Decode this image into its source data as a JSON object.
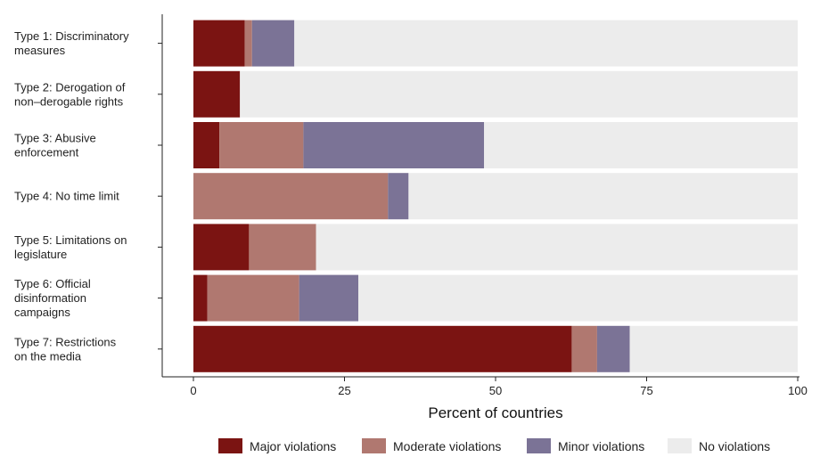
{
  "chart_data": {
    "type": "bar",
    "orientation": "horizontal",
    "stacked": true,
    "xlabel": "Percent of countries",
    "xlim": [
      0,
      100
    ],
    "xticks": [
      "0",
      "25",
      "50",
      "75",
      "100"
    ],
    "xtick_values": [
      0,
      25,
      50,
      75,
      100
    ],
    "grid": false,
    "legend_position": "bottom",
    "categories": [
      [
        "Type 1: Discriminatory",
        "measures"
      ],
      [
        "Type 2: Derogation of",
        "non–derogable rights"
      ],
      [
        "Type 3: Abusive",
        "enforcement"
      ],
      [
        "Type 4: No time limit"
      ],
      [
        "Type 5: Limitations on",
        "legislature"
      ],
      [
        "Type 6: Official",
        "disinformation",
        "campaigns"
      ],
      [
        "Type 7: Restrictions",
        "on the media"
      ]
    ],
    "series": [
      {
        "name": "Major violations",
        "color": "#7b1412",
        "values": [
          8.5,
          7.7,
          4.3,
          0.0,
          9.2,
          2.3,
          62.6
        ]
      },
      {
        "name": "Moderate violations",
        "color": "#b07870",
        "values": [
          1.2,
          0.0,
          13.9,
          32.2,
          11.1,
          15.2,
          4.2
        ]
      },
      {
        "name": "Minor violations",
        "color": "#7b7396",
        "values": [
          7.0,
          0.0,
          29.9,
          3.4,
          0.0,
          9.8,
          5.4
        ]
      },
      {
        "name": "No violations",
        "color": "#ececec",
        "values": [
          83.3,
          92.3,
          51.9,
          64.4,
          79.7,
          72.7,
          27.8
        ]
      }
    ]
  }
}
